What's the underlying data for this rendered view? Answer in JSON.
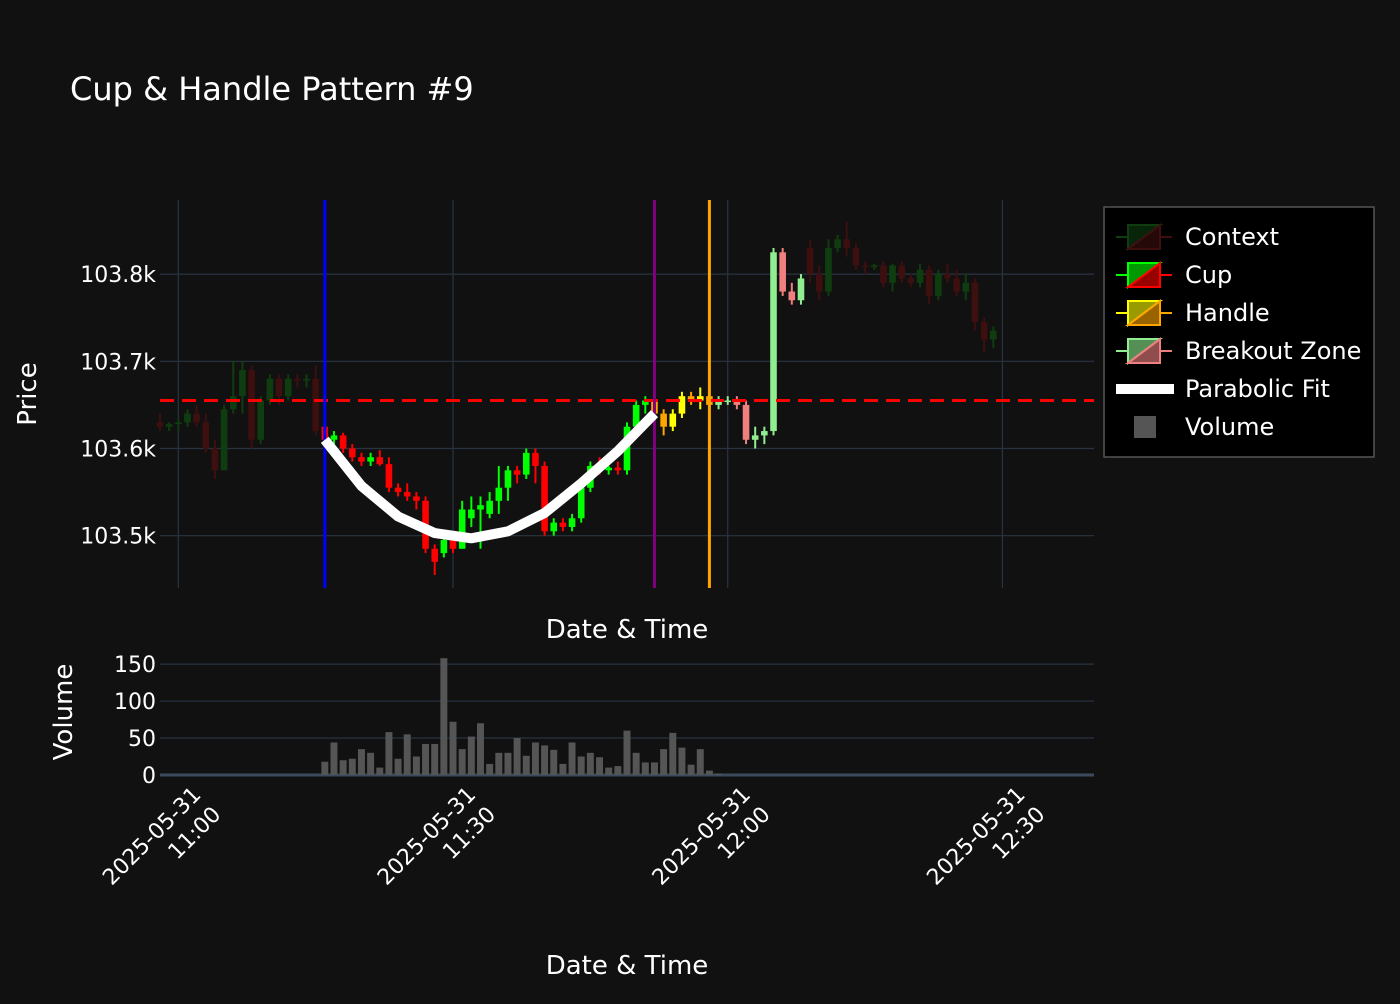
{
  "chart_data": [
    {
      "type": "candlestick",
      "title": "Cup & Handle Pattern #9",
      "xlabel": "Date & Time",
      "ylabel": "Price",
      "y_ticks": [
        103500,
        103600,
        103700,
        103800
      ],
      "y_tick_labels": [
        "103.5k",
        "103.6k",
        "103.7k",
        "103.8k"
      ],
      "ylim": [
        103440,
        103885
      ],
      "x_range": [
        "2025-05-31 10:58",
        "2025-05-31 12:40"
      ],
      "x_ticks": [
        "2025-05-31 11:00",
        "2025-05-31 11:30",
        "2025-05-31 12:00",
        "2025-05-31 12:30"
      ],
      "x_tick_labels": [
        [
          "2025-05-31",
          "11:00"
        ],
        [
          "2025-05-31",
          "11:30"
        ],
        [
          "2025-05-31",
          "12:00"
        ],
        [
          "2025-05-31",
          "12:30"
        ]
      ],
      "grid": true,
      "legend_position": "right",
      "legend": [
        {
          "name": "Context",
          "kind": "candle",
          "inc_color": "#0f3d0f",
          "dec_color": "#3d0f0f"
        },
        {
          "name": "Cup",
          "kind": "candle",
          "inc_color": "#00ff00",
          "dec_color": "#ff0000"
        },
        {
          "name": "Handle",
          "kind": "candle",
          "inc_color": "#ffff00",
          "dec_color": "#ffa500"
        },
        {
          "name": "Breakout Zone",
          "kind": "candle",
          "inc_color": "#90ee90",
          "dec_color": "#f08080"
        },
        {
          "name": "Parabolic Fit",
          "kind": "line",
          "color": "#ffffff"
        },
        {
          "name": "Volume",
          "kind": "bar",
          "color": "#555555"
        }
      ],
      "resistance_level": 103655,
      "resistance_color": "#ff0000",
      "vertical_markers": [
        {
          "time": "2025-05-31 11:16",
          "color": "#0000ff"
        },
        {
          "time": "2025-05-31 11:52",
          "color": "#800080"
        },
        {
          "time": "2025-05-31 11:58",
          "color": "#ffa500"
        }
      ],
      "parabolic_fit": {
        "color": "#ffffff",
        "points": [
          [
            "2025-05-31 11:16",
            103610
          ],
          [
            "2025-05-31 11:20",
            103557
          ],
          [
            "2025-05-31 11:24",
            103522
          ],
          [
            "2025-05-31 11:28",
            103503
          ],
          [
            "2025-05-31 11:32",
            103497
          ],
          [
            "2025-05-31 11:36",
            103505
          ],
          [
            "2025-05-31 11:40",
            103526
          ],
          [
            "2025-05-31 11:44",
            103560
          ],
          [
            "2025-05-31 11:48",
            103597
          ],
          [
            "2025-05-31 11:52",
            103640
          ]
        ]
      },
      "series": [
        {
          "name": "Context",
          "candles": [
            [
              "2025-05-31 10:58",
              103630,
              103640,
              103620,
              103625
            ],
            [
              "2025-05-31 10:59",
              103625,
              103630,
              103620,
              103628
            ],
            [
              "2025-05-31 11:00",
              103628,
              103635,
              103620,
              103630
            ],
            [
              "2025-05-31 11:01",
              103630,
              103645,
              103625,
              103640
            ],
            [
              "2025-05-31 11:02",
              103640,
              103650,
              103625,
              103630
            ],
            [
              "2025-05-31 11:03",
              103630,
              103640,
              103595,
              103600
            ],
            [
              "2025-05-31 11:04",
              103600,
              103610,
              103565,
              103575
            ],
            [
              "2025-05-31 11:05",
              103575,
              103650,
              103575,
              103645
            ],
            [
              "2025-05-31 11:06",
              103645,
              103700,
              103640,
              103660
            ],
            [
              "2025-05-31 11:07",
              103660,
              103700,
              103640,
              103690
            ],
            [
              "2025-05-31 11:08",
              103690,
              103695,
              103600,
              103610
            ],
            [
              "2025-05-31 11:09",
              103610,
              103660,
              103605,
              103655
            ],
            [
              "2025-05-31 11:10",
              103655,
              103685,
              103650,
              103680
            ],
            [
              "2025-05-31 11:11",
              103680,
              103685,
              103650,
              103660
            ],
            [
              "2025-05-31 11:12",
              103660,
              103685,
              103655,
              103680
            ],
            [
              "2025-05-31 11:13",
              103680,
              103685,
              103670,
              103678
            ],
            [
              "2025-05-31 11:14",
              103678,
              103685,
              103670,
              103680
            ],
            [
              "2025-05-31 11:15",
              103680,
              103695,
              103615,
              103620
            ],
            [
              "2025-05-31 12:09",
              103830,
              103840,
              103790,
              103800
            ],
            [
              "2025-05-31 12:10",
              103800,
              103810,
              103770,
              103780
            ],
            [
              "2025-05-31 12:11",
              103780,
              103840,
              103775,
              103830
            ],
            [
              "2025-05-31 12:12",
              103830,
              103845,
              103825,
              103840
            ],
            [
              "2025-05-31 12:13",
              103840,
              103860,
              103820,
              103830
            ],
            [
              "2025-05-31 12:14",
              103830,
              103835,
              103805,
              103810
            ],
            [
              "2025-05-31 12:15",
              103810,
              103815,
              103800,
              103808
            ],
            [
              "2025-05-31 12:16",
              103808,
              103812,
              103805,
              103810
            ],
            [
              "2025-05-31 12:17",
              103810,
              103815,
              103785,
              103790
            ],
            [
              "2025-05-31 12:18",
              103790,
              103812,
              103780,
              103810
            ],
            [
              "2025-05-31 12:19",
              103810,
              103815,
              103790,
              103795
            ],
            [
              "2025-05-31 12:20",
              103795,
              103800,
              103785,
              103790
            ],
            [
              "2025-05-31 12:21",
              103790,
              103812,
              103785,
              103805
            ],
            [
              "2025-05-31 12:22",
              103805,
              103810,
              103765,
              103775
            ],
            [
              "2025-05-31 12:23",
              103775,
              103805,
              103770,
              103800
            ],
            [
              "2025-05-31 12:24",
              103800,
              103812,
              103790,
              103795
            ],
            [
              "2025-05-31 12:25",
              103795,
              103805,
              103775,
              103780
            ],
            [
              "2025-05-31 12:26",
              103780,
              103800,
              103770,
              103790
            ],
            [
              "2025-05-31 12:27",
              103790,
              103795,
              103735,
              103745
            ],
            [
              "2025-05-31 12:28",
              103745,
              103750,
              103710,
              103725
            ],
            [
              "2025-05-31 12:29",
              103725,
              103740,
              103715,
              103735
            ]
          ]
        },
        {
          "name": "Cup",
          "candles": [
            [
              "2025-05-31 11:16",
              103625,
              103628,
              103600,
              103610
            ],
            [
              "2025-05-31 11:17",
              103610,
              103620,
              103605,
              103615
            ],
            [
              "2025-05-31 11:18",
              103615,
              103618,
              103595,
              103600
            ],
            [
              "2025-05-31 11:19",
              103600,
              103605,
              103585,
              103590
            ],
            [
              "2025-05-31 11:20",
              103590,
              103595,
              103580,
              103585
            ],
            [
              "2025-05-31 11:21",
              103585,
              103595,
              103580,
              103590
            ],
            [
              "2025-05-31 11:22",
              103590,
              103598,
              103580,
              103582
            ],
            [
              "2025-05-31 11:23",
              103582,
              103590,
              103550,
              103555
            ],
            [
              "2025-05-31 11:24",
              103555,
              103560,
              103545,
              103550
            ],
            [
              "2025-05-31 11:25",
              103550,
              103560,
              103540,
              103545
            ],
            [
              "2025-05-31 11:26",
              103545,
              103550,
              103530,
              103540
            ],
            [
              "2025-05-31 11:27",
              103540,
              103545,
              103480,
              103485
            ],
            [
              "2025-05-31 11:28",
              103485,
              103490,
              103455,
              103470
            ],
            [
              "2025-05-31 11:29",
              103480,
              103500,
              103475,
              103495
            ],
            [
              "2025-05-31 11:30",
              103495,
              103500,
              103480,
              103485
            ],
            [
              "2025-05-31 11:31",
              103485,
              103540,
              103485,
              103530
            ],
            [
              "2025-05-31 11:32",
              103520,
              103545,
              103510,
              103530
            ],
            [
              "2025-05-31 11:33",
              103530,
              103545,
              103485,
              103535
            ],
            [
              "2025-05-31 11:34",
              103525,
              103550,
              103520,
              103540
            ],
            [
              "2025-05-31 11:35",
              103540,
              103580,
              103525,
              103555
            ],
            [
              "2025-05-31 11:36",
              103555,
              103580,
              103540,
              103575
            ],
            [
              "2025-05-31 11:37",
              103575,
              103580,
              103560,
              103570
            ],
            [
              "2025-05-31 11:38",
              103570,
              103600,
              103565,
              103595
            ],
            [
              "2025-05-31 11:39",
              103595,
              103600,
              103560,
              103580
            ],
            [
              "2025-05-31 11:40",
              103580,
              103585,
              103500,
              103505
            ],
            [
              "2025-05-31 11:41",
              103505,
              103520,
              103500,
              103515
            ],
            [
              "2025-05-31 11:42",
              103515,
              103520,
              103505,
              103510
            ],
            [
              "2025-05-31 11:43",
              103510,
              103525,
              103505,
              103520
            ],
            [
              "2025-05-31 11:44",
              103520,
              103560,
              103515,
              103555
            ],
            [
              "2025-05-31 11:45",
              103555,
              103585,
              103550,
              103580
            ],
            [
              "2025-05-31 11:46",
              103580,
              103590,
              103570,
              103575
            ],
            [
              "2025-05-31 11:47",
              103575,
              103580,
              103570,
              103578
            ],
            [
              "2025-05-31 11:48",
              103578,
              103585,
              103570,
              103575
            ],
            [
              "2025-05-31 11:49",
              103575,
              103630,
              103570,
              103625
            ],
            [
              "2025-05-31 11:50",
              103625,
              103655,
              103620,
              103650
            ],
            [
              "2025-05-31 11:51",
              103650,
              103660,
              103640,
              103655
            ]
          ]
        },
        {
          "name": "Handle",
          "candles": [
            [
              "2025-05-31 11:52",
              103655,
              103660,
              103630,
              103640
            ],
            [
              "2025-05-31 11:53",
              103640,
              103645,
              103615,
              103625
            ],
            [
              "2025-05-31 11:54",
              103625,
              103645,
              103620,
              103640
            ],
            [
              "2025-05-31 11:55",
              103640,
              103665,
              103635,
              103660
            ],
            [
              "2025-05-31 11:56",
              103660,
              103665,
              103650,
              103655
            ],
            [
              "2025-05-31 11:57",
              103655,
              103670,
              103645,
              103660
            ],
            [
              "2025-05-31 11:58",
              103660,
              103665,
              103645,
              103650
            ]
          ]
        },
        {
          "name": "Breakout Zone",
          "candles": [
            [
              "2025-05-31 11:59",
              103650,
              103660,
              103645,
              103655
            ],
            [
              "2025-05-31 12:00",
              103655,
              103660,
              103650,
              103655
            ],
            [
              "2025-05-31 12:01",
              103655,
              103660,
              103645,
              103650
            ],
            [
              "2025-05-31 12:02",
              103650,
              103655,
              103605,
              103610
            ],
            [
              "2025-05-31 12:03",
              103610,
              103625,
              103600,
              103615
            ],
            [
              "2025-05-31 12:04",
              103615,
              103625,
              103605,
              103620
            ],
            [
              "2025-05-31 12:05",
              103620,
              103830,
              103615,
              103825
            ],
            [
              "2025-05-31 12:06",
              103825,
              103830,
              103775,
              103780
            ],
            [
              "2025-05-31 12:07",
              103780,
              103790,
              103765,
              103770
            ],
            [
              "2025-05-31 12:08",
              103770,
              103800,
              103765,
              103795
            ]
          ]
        }
      ]
    },
    {
      "type": "bar",
      "ylabel": "Volume",
      "xlabel": "Date & Time",
      "y_ticks": [
        0,
        50,
        100,
        150
      ],
      "ylim": [
        0,
        165
      ],
      "color": "#555555",
      "x": [
        "2025-05-31 11:16",
        "2025-05-31 11:17",
        "2025-05-31 11:18",
        "2025-05-31 11:19",
        "2025-05-31 11:20",
        "2025-05-31 11:21",
        "2025-05-31 11:22",
        "2025-05-31 11:23",
        "2025-05-31 11:24",
        "2025-05-31 11:25",
        "2025-05-31 11:26",
        "2025-05-31 11:27",
        "2025-05-31 11:28",
        "2025-05-31 11:29",
        "2025-05-31 11:30",
        "2025-05-31 11:31",
        "2025-05-31 11:32",
        "2025-05-31 11:33",
        "2025-05-31 11:34",
        "2025-05-31 11:35",
        "2025-05-31 11:36",
        "2025-05-31 11:37",
        "2025-05-31 11:38",
        "2025-05-31 11:39",
        "2025-05-31 11:40",
        "2025-05-31 11:41",
        "2025-05-31 11:42",
        "2025-05-31 11:43",
        "2025-05-31 11:44",
        "2025-05-31 11:45",
        "2025-05-31 11:46",
        "2025-05-31 11:47",
        "2025-05-31 11:48",
        "2025-05-31 11:49",
        "2025-05-31 11:50",
        "2025-05-31 11:51",
        "2025-05-31 11:52",
        "2025-05-31 11:53",
        "2025-05-31 11:54",
        "2025-05-31 11:55",
        "2025-05-31 11:56",
        "2025-05-31 11:57",
        "2025-05-31 11:58",
        "2025-05-31 11:59"
      ],
      "values": [
        18,
        44,
        20,
        22,
        35,
        30,
        10,
        58,
        22,
        55,
        25,
        42,
        42,
        158,
        72,
        35,
        52,
        70,
        15,
        30,
        30,
        50,
        26,
        44,
        40,
        34,
        15,
        44,
        25,
        30,
        24,
        10,
        12,
        60,
        30,
        17,
        17,
        35,
        57,
        37,
        14,
        35,
        6,
        2
      ]
    }
  ]
}
